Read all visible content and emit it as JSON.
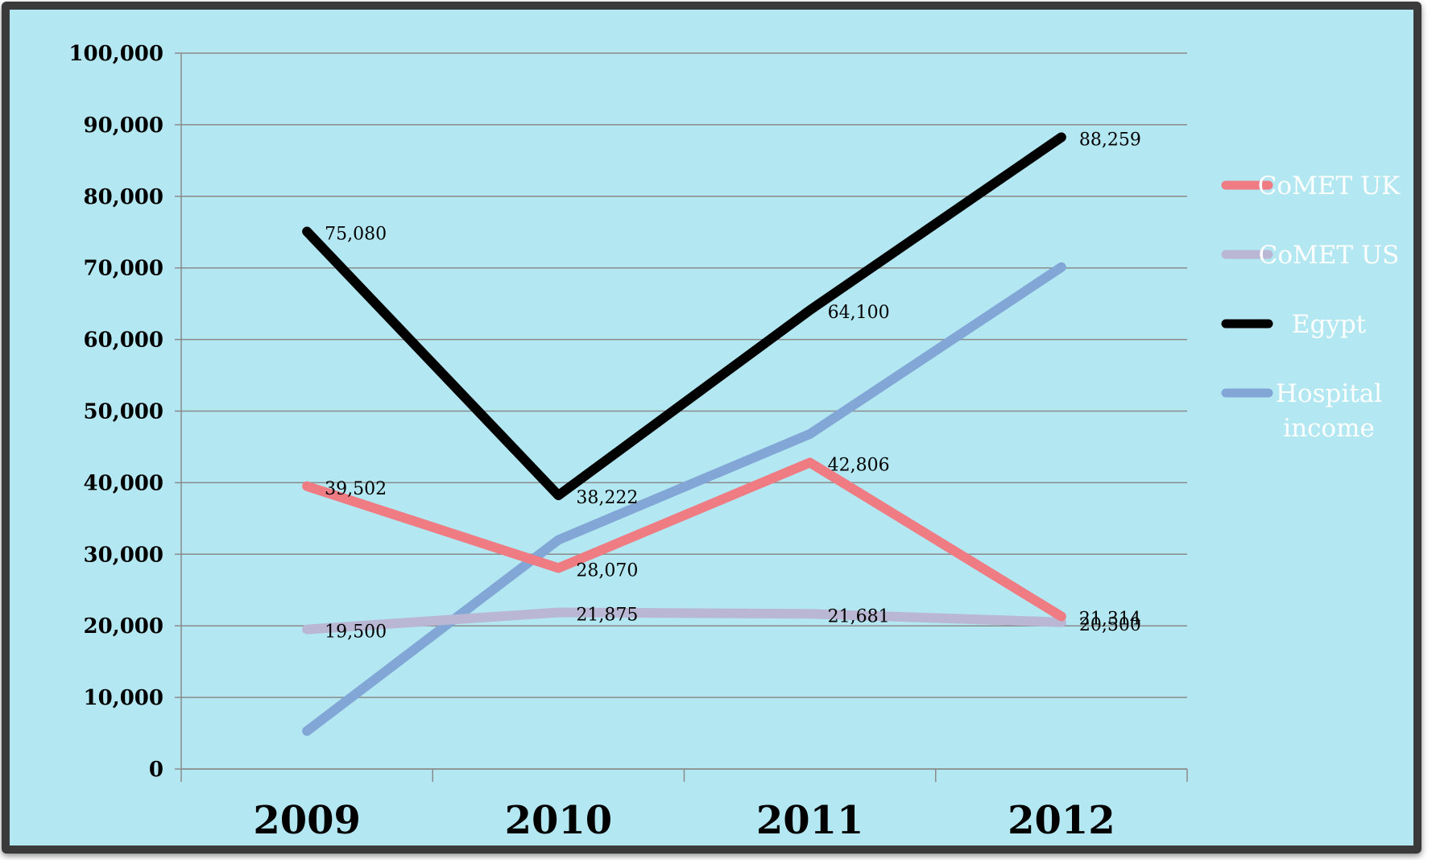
{
  "chart_data": {
    "type": "line",
    "title": "",
    "xlabel": "",
    "ylabel": "",
    "categories": [
      "2009",
      "2010",
      "2011",
      "2012"
    ],
    "ylim": [
      0,
      100000
    ],
    "yticks": [
      0,
      10000,
      20000,
      30000,
      40000,
      50000,
      60000,
      70000,
      80000,
      90000,
      100000
    ],
    "ytick_labels": [
      "0",
      "10,000",
      "20,000",
      "30,000",
      "40,000",
      "50,000",
      "60,000",
      "70,000",
      "80,000",
      "90,000",
      "100,000"
    ],
    "grid": true,
    "legend_position": "right",
    "series": [
      {
        "name": "CoMET UK",
        "color": "#ef7b83",
        "values": [
          39502,
          28070,
          42806,
          21314
        ],
        "labels": [
          "39,502",
          "28,070",
          "42,806",
          "21,314"
        ]
      },
      {
        "name": "CoMET US",
        "color": "#b9b7d4",
        "values": [
          19500,
          21875,
          21681,
          20500
        ],
        "labels": [
          "19,500",
          "21,875",
          "21,681",
          "20,500"
        ]
      },
      {
        "name": "Egypt",
        "color": "#000000",
        "values": [
          75080,
          38222,
          64100,
          88259
        ],
        "labels": [
          "75,080",
          "38,222",
          "64,100",
          "88,259"
        ]
      },
      {
        "name": "Hospital income",
        "color": "#82a7d6",
        "values": [
          5300,
          32000,
          46800,
          70100
        ],
        "labels": []
      }
    ],
    "legend": [
      {
        "lines": [
          "CoMET UK"
        ],
        "color": "#ef7b83"
      },
      {
        "lines": [
          "CoMET US"
        ],
        "color": "#b9b7d4"
      },
      {
        "lines": [
          "Egypt"
        ],
        "color": "#000000"
      },
      {
        "lines": [
          "Hospital",
          "income"
        ],
        "color": "#82a7d6"
      }
    ]
  }
}
